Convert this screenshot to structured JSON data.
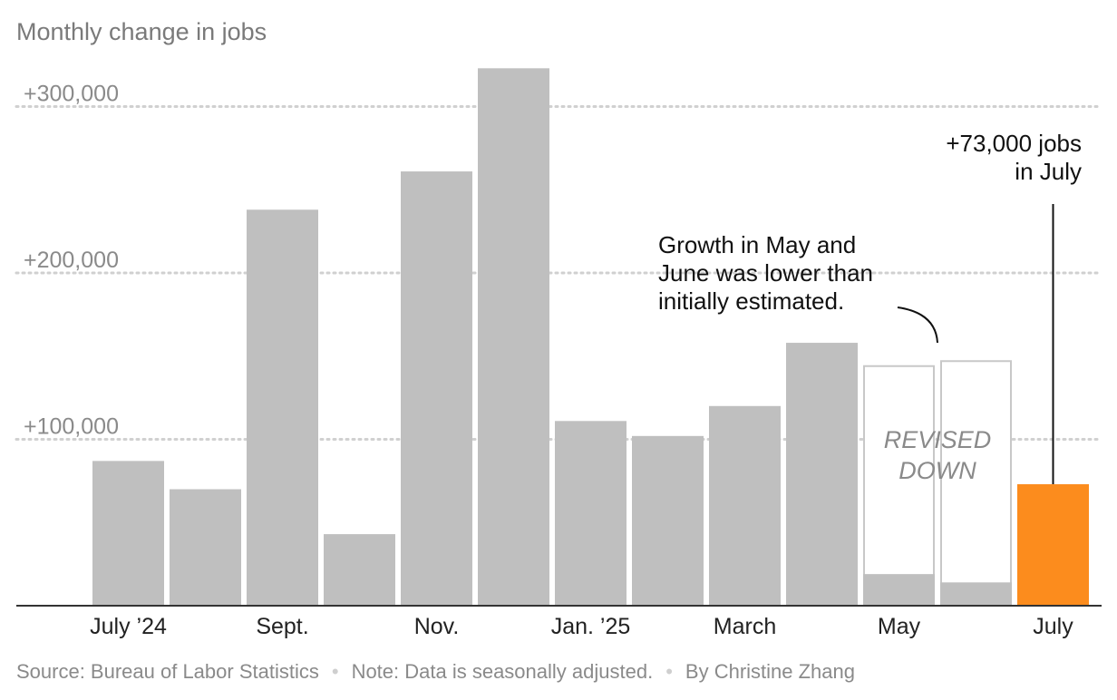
{
  "chart_data": {
    "type": "bar",
    "title": "Monthly change in jobs",
    "categories": [
      "Jul 2024",
      "Aug 2024",
      "Sep 2024",
      "Oct 2024",
      "Nov 2024",
      "Dec 2024",
      "Jan 2025",
      "Feb 2025",
      "Mar 2025",
      "Apr 2025",
      "May 2025",
      "Jun 2025",
      "Jul 2025"
    ],
    "x_tick_labels": [
      "July ’24",
      "",
      "Sept.",
      "",
      "Nov.",
      "",
      "Jan. ’25",
      "",
      "March",
      "",
      "May",
      "",
      "July"
    ],
    "series": [
      {
        "values": [
          87000,
          70000,
          238000,
          43000,
          261000,
          323000,
          111000,
          102000,
          120000,
          158000,
          19000,
          14000,
          73000
        ]
      }
    ],
    "initial_estimates": [
      null,
      null,
      null,
      null,
      null,
      null,
      null,
      null,
      null,
      null,
      144000,
      147000,
      null
    ],
    "ylim": [
      0,
      330000
    ],
    "y_ticks": [
      100000,
      200000,
      300000
    ],
    "y_tick_labels": [
      "+100,000",
      "+200,000",
      "+300,000"
    ],
    "grid": true,
    "colors": {
      "bar": "#bfbfbf",
      "highlight": "#fc8c1d",
      "outline": "#c8c8c8",
      "grid": "#d0d0d0",
      "axis": "#333333"
    },
    "annotations": {
      "revised_label": [
        "REVISED",
        "DOWN"
      ],
      "revision_note": [
        "Growth in May and",
        "June was lower than",
        "initially estimated."
      ],
      "july_callout": [
        "+73,000 jobs",
        "in July"
      ]
    }
  },
  "footer": {
    "source": "Source: Bureau of Labor Statistics",
    "note": "Note: Data is seasonally adjusted.",
    "byline": "By Christine Zhang",
    "separator": "•"
  }
}
